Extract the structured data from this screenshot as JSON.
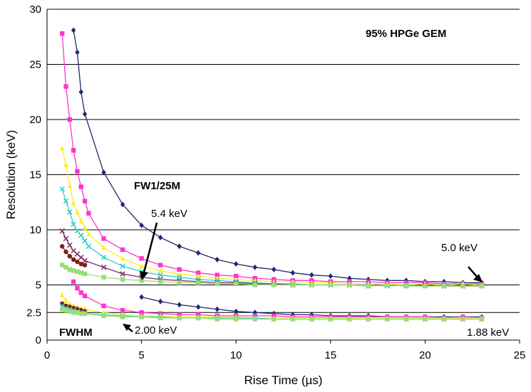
{
  "chart_data": {
    "type": "line",
    "title": "95% HPGe GEM",
    "xlabel": "Rise Time (µs)",
    "ylabel": "Resolution (keV)",
    "xlim": [
      0,
      25
    ],
    "ylim": [
      0,
      30
    ],
    "x_ticks": [
      "0",
      "5",
      "10",
      "15",
      "20",
      "25"
    ],
    "y_ticks": [
      "0",
      "2.5",
      "5",
      "10",
      "15",
      "20",
      "25",
      "30"
    ],
    "grid": "horizontal",
    "legend": "none",
    "annotations": [
      {
        "id": "fw125m",
        "text": "FW1/25M",
        "bold": true
      },
      {
        "id": "fwhm",
        "text": "FWHM",
        "bold": true
      },
      {
        "id": "a54",
        "text": "5.4 keV",
        "bold": false
      },
      {
        "id": "a50",
        "text": "5.0 keV",
        "bold": false
      },
      {
        "id": "a200",
        "text": "2.00 keV",
        "bold": false
      },
      {
        "id": "a188",
        "text": "1.88 keV",
        "bold": false
      }
    ],
    "series": [
      {
        "group": "FW1/25M",
        "color": "#1f2a6e",
        "marker": "diamond",
        "x": [
          1.4,
          1.6,
          1.8,
          2.0,
          3.0,
          4.0,
          5.0,
          6.0,
          7.0,
          8.0,
          9.0,
          10.0,
          11.0,
          12.0,
          13.0,
          14.0,
          15.0,
          16.0,
          17.0,
          18.0,
          19.0,
          20.0,
          21.0,
          22.0,
          23.0
        ],
        "y": [
          28.1,
          26.1,
          22.5,
          20.5,
          15.2,
          12.3,
          10.4,
          9.3,
          8.5,
          7.9,
          7.3,
          6.9,
          6.6,
          6.4,
          6.1,
          5.9,
          5.8,
          5.6,
          5.5,
          5.4,
          5.4,
          5.3,
          5.3,
          5.2,
          5.2
        ]
      },
      {
        "group": "FW1/25M",
        "color": "#ff33cc",
        "marker": "square",
        "x": [
          0.8,
          1.0,
          1.2,
          1.4,
          1.6,
          1.8,
          2.0,
          2.2,
          3.0,
          4.0,
          5.0,
          6.0,
          7.0,
          8.0,
          9.0,
          10.0,
          11.0,
          12.0,
          13.0,
          14.0,
          15.0,
          16.0,
          17.0,
          18.0,
          19.0,
          20.0,
          21.0,
          22.0,
          23.0
        ],
        "y": [
          27.8,
          23.0,
          20.0,
          17.2,
          15.3,
          13.9,
          12.6,
          11.5,
          9.2,
          8.2,
          7.4,
          6.8,
          6.4,
          6.1,
          5.9,
          5.8,
          5.6,
          5.5,
          5.4,
          5.4,
          5.3,
          5.3,
          5.3,
          5.2,
          5.2,
          5.2,
          5.1,
          5.1,
          5.1
        ]
      },
      {
        "group": "FW1/25M",
        "color": "#ffee22",
        "marker": "triangle",
        "x": [
          0.8,
          1.0,
          1.2,
          1.4,
          1.6,
          1.8,
          2.0,
          2.2,
          3.0,
          4.0,
          5.0,
          6.0,
          7.0,
          8.0,
          9.0,
          10.0,
          11.0,
          12.0,
          13.0,
          14.0,
          15.0,
          16.0,
          17.0,
          18.0,
          19.0,
          20.0,
          21.0,
          22.0,
          23.0
        ],
        "y": [
          17.4,
          15.9,
          14.0,
          12.4,
          11.6,
          10.8,
          10.2,
          9.6,
          8.4,
          7.4,
          6.7,
          6.3,
          6.0,
          5.8,
          5.6,
          5.5,
          5.4,
          5.3,
          5.3,
          5.2,
          5.2,
          5.1,
          5.1,
          5.1,
          5.0,
          5.1,
          5.0,
          5.1,
          5.0
        ]
      },
      {
        "group": "FW1/25M",
        "color": "#33cccc",
        "marker": "x",
        "x": [
          0.8,
          1.0,
          1.2,
          1.4,
          1.6,
          1.8,
          2.0,
          2.2,
          3.0,
          4.0,
          5.0,
          6.0,
          7.0,
          8.0,
          9.0,
          10.0,
          11.0,
          12.0,
          13.0,
          14.0,
          15.0,
          16.0,
          17.0,
          18.0,
          19.0,
          20.0,
          21.0,
          22.0,
          23.0
        ],
        "y": [
          13.7,
          12.6,
          11.6,
          10.5,
          9.9,
          9.5,
          9.0,
          8.5,
          7.5,
          6.7,
          6.2,
          5.9,
          5.7,
          5.5,
          5.4,
          5.3,
          5.2,
          5.1,
          5.1,
          5.0,
          5.0,
          5.0,
          5.0,
          4.9,
          5.0,
          4.9,
          5.0,
          4.9,
          5.0
        ]
      },
      {
        "group": "FW1/25M",
        "color": "#7a2d66",
        "marker": "x",
        "x": [
          0.8,
          1.0,
          1.2,
          1.4,
          1.6,
          1.8,
          2.0,
          3.0,
          4.0,
          5.0,
          6.0,
          7.0,
          8.0,
          9.0,
          10.0,
          11.0,
          12.0,
          13.0,
          14.0,
          15.0,
          16.0,
          17.0,
          18.0,
          19.0,
          20.0,
          21.0,
          22.0,
          23.0
        ],
        "y": [
          9.9,
          9.2,
          8.6,
          8.1,
          7.8,
          7.5,
          7.2,
          6.6,
          6.0,
          5.7,
          5.5,
          5.4,
          5.3,
          5.2,
          5.2,
          5.1,
          5.1,
          5.0,
          5.0,
          5.0,
          5.0,
          4.9,
          5.0,
          4.9,
          5.0,
          4.9,
          4.9,
          4.9
        ]
      },
      {
        "group": "FW1/25M",
        "color": "#8b1a1a",
        "marker": "circle",
        "x": [
          0.8,
          1.0,
          1.2,
          1.4,
          1.6,
          1.8,
          2.0
        ],
        "y": [
          8.5,
          8.0,
          7.6,
          7.3,
          7.1,
          6.9,
          6.8
        ]
      },
      {
        "group": "FW1/25M",
        "color": "#99dd77",
        "marker": "square",
        "x": [
          0.8,
          1.0,
          1.2,
          1.4,
          1.6,
          1.8,
          2.0,
          3.0,
          4.0,
          5.0,
          6.0,
          7.0,
          8.0,
          9.0,
          10.0,
          11.0,
          12.0,
          13.0,
          14.0,
          15.0,
          16.0,
          17.0,
          18.0,
          19.0,
          20.0,
          21.0,
          22.0,
          23.0
        ],
        "y": [
          6.8,
          6.6,
          6.4,
          6.3,
          6.2,
          6.1,
          6.0,
          5.7,
          5.5,
          5.4,
          5.3,
          5.2,
          5.2,
          5.1,
          5.1,
          5.0,
          5.0,
          5.0,
          5.0,
          5.0,
          5.0,
          4.9,
          5.0,
          4.9,
          4.9,
          4.9,
          4.9,
          4.9
        ]
      },
      {
        "group": "FWHM",
        "color": "#1f2a6e",
        "marker": "diamond",
        "x": [
          5.0,
          6.0,
          7.0,
          8.0,
          9.0,
          10.0,
          11.0,
          12.0,
          13.0,
          14.0,
          15.0,
          16.0,
          17.0,
          18.0,
          19.0,
          20.0,
          21.0,
          22.0,
          23.0
        ],
        "y": [
          3.9,
          3.5,
          3.2,
          3.0,
          2.8,
          2.6,
          2.5,
          2.4,
          2.3,
          2.3,
          2.2,
          2.2,
          2.2,
          2.1,
          2.1,
          2.1,
          2.1,
          2.1,
          2.1
        ]
      },
      {
        "group": "FWHM",
        "color": "#ff33cc",
        "marker": "square",
        "x": [
          1.4,
          1.6,
          1.8,
          2.0,
          3.0,
          4.0,
          5.0,
          6.0,
          7.0,
          8.0,
          9.0,
          10.0,
          11.0,
          12.0,
          13.0,
          14.0,
          15.0,
          16.0,
          17.0,
          18.0,
          19.0,
          20.0,
          21.0,
          22.0,
          23.0
        ],
        "y": [
          5.3,
          4.7,
          4.3,
          4.0,
          3.1,
          2.7,
          2.5,
          2.4,
          2.3,
          2.3,
          2.2,
          2.2,
          2.2,
          2.2,
          2.1,
          2.1,
          2.1,
          2.1,
          2.1,
          2.1,
          2.1,
          2.1,
          2.0,
          2.1,
          2.0
        ]
      },
      {
        "group": "FWHM",
        "color": "#ffee22",
        "marker": "triangle",
        "x": [
          0.8,
          1.0,
          1.2,
          1.4,
          1.6,
          1.8,
          2.0,
          3.0,
          4.0,
          5.0,
          6.0,
          7.0,
          8.0,
          9.0,
          10.0,
          11.0,
          12.0,
          13.0,
          14.0,
          15.0,
          16.0,
          17.0,
          18.0,
          19.0,
          20.0,
          21.0,
          22.0,
          23.0
        ],
        "y": [
          4.1,
          3.6,
          3.3,
          3.1,
          3.0,
          2.9,
          2.8,
          2.5,
          2.3,
          2.2,
          2.2,
          2.1,
          2.1,
          2.1,
          2.1,
          2.0,
          2.0,
          2.0,
          2.0,
          2.0,
          2.0,
          2.0,
          2.0,
          2.0,
          2.0,
          2.0,
          2.0,
          2.0
        ]
      },
      {
        "group": "FWHM",
        "color": "#8b1a1a",
        "marker": "circle",
        "x": [
          0.8,
          1.0,
          1.2,
          1.4,
          1.6,
          1.8,
          2.0
        ],
        "y": [
          3.3,
          3.1,
          3.0,
          2.9,
          2.8,
          2.7,
          2.6
        ]
      },
      {
        "group": "FWHM",
        "color": "#33cccc",
        "marker": "x",
        "x": [
          0.8,
          1.0,
          1.2,
          1.4,
          1.6,
          1.8,
          2.0,
          3.0,
          4.0,
          5.0,
          6.0,
          7.0,
          8.0,
          9.0,
          10.0,
          11.0,
          12.0,
          13.0,
          14.0,
          15.0,
          16.0,
          17.0,
          18.0,
          19.0,
          20.0,
          21.0,
          22.0,
          23.0
        ],
        "y": [
          3.1,
          2.9,
          2.8,
          2.7,
          2.6,
          2.5,
          2.4,
          2.3,
          2.2,
          2.1,
          2.1,
          2.0,
          2.0,
          2.0,
          2.0,
          2.0,
          1.9,
          1.9,
          1.9,
          1.9,
          1.9,
          1.9,
          1.9,
          1.9,
          1.9,
          1.9,
          1.9,
          1.9
        ]
      },
      {
        "group": "FWHM",
        "color": "#99dd77",
        "marker": "square",
        "x": [
          0.8,
          1.0,
          1.2,
          1.4,
          1.6,
          1.8,
          2.0,
          3.0,
          4.0,
          5.0,
          6.0,
          7.0,
          8.0,
          9.0,
          10.0,
          11.0,
          12.0,
          13.0,
          14.0,
          15.0,
          16.0,
          17.0,
          18.0,
          19.0,
          20.0,
          21.0,
          22.0,
          23.0
        ],
        "y": [
          2.8,
          2.7,
          2.6,
          2.5,
          2.5,
          2.4,
          2.4,
          2.2,
          2.1,
          2.1,
          2.0,
          2.0,
          2.0,
          1.9,
          1.9,
          1.9,
          1.9,
          1.9,
          1.9,
          1.9,
          1.9,
          1.9,
          1.9,
          1.9,
          1.9,
          1.9,
          1.9,
          1.9
        ]
      }
    ]
  }
}
